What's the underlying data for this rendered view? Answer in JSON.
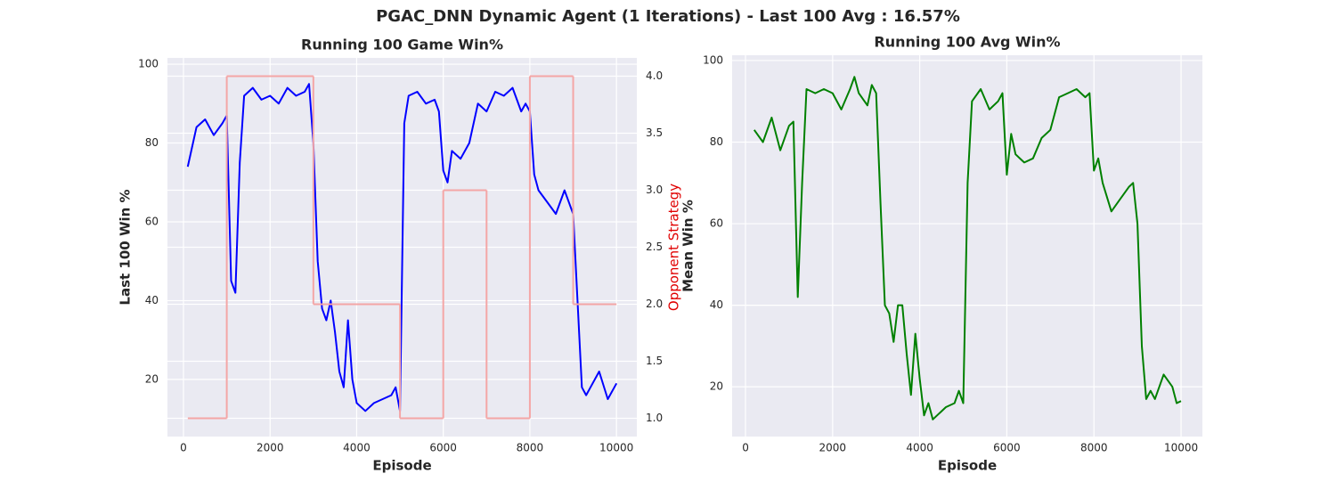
{
  "title": "PGAC_DNN Dynamic Agent (1 Iterations) -  Last 100 Avg : 16.57%",
  "chart_data": [
    {
      "type": "line",
      "title": "Running 100 Game Win%",
      "xlabel": "Episode",
      "ylabel": "Last 100 Win %",
      "y2label": "Opponent Strategy",
      "y2label_color": "#e00000",
      "grid": true,
      "xlim": [
        -370,
        10470
      ],
      "ylim": [
        5.5,
        101.6
      ],
      "y2lim": [
        0.84,
        4.16
      ],
      "xticks": [
        0,
        2000,
        4000,
        6000,
        8000,
        10000
      ],
      "yticks": [
        20,
        40,
        60,
        80,
        100
      ],
      "y2ticks": [
        {
          "value": 1,
          "label": "1.0"
        },
        1.5,
        {
          "value": 2,
          "label": "2.0"
        },
        2.5,
        {
          "value": 3,
          "label": "3.0"
        },
        3.5,
        {
          "value": 4,
          "label": "4.0"
        }
      ],
      "x": [
        100,
        300,
        500,
        700,
        900,
        1000,
        1100,
        1200,
        1300,
        1400,
        1600,
        1800,
        2000,
        2200,
        2400,
        2600,
        2800,
        2900,
        3000,
        3100,
        3200,
        3300,
        3400,
        3500,
        3600,
        3700,
        3800,
        3900,
        4000,
        4200,
        4400,
        4600,
        4800,
        4900,
        5000,
        5100,
        5200,
        5400,
        5600,
        5800,
        5900,
        6000,
        6100,
        6200,
        6400,
        6600,
        6800,
        7000,
        7200,
        7400,
        7600,
        7800,
        7900,
        8000,
        8100,
        8200,
        8400,
        8600,
        8800,
        9000,
        9100,
        9200,
        9300,
        9400,
        9600,
        9800,
        10000
      ],
      "series": [
        {
          "color": "#0000ff",
          "values": [
            74,
            84,
            86,
            82,
            85,
            87,
            45,
            42,
            75,
            92,
            94,
            91,
            92,
            90,
            94,
            92,
            93,
            95,
            80,
            50,
            38,
            35,
            40,
            32,
            22,
            18,
            35,
            20,
            14,
            12,
            14,
            15,
            16,
            18,
            12,
            85,
            92,
            93,
            90,
            91,
            88,
            73,
            70,
            78,
            76,
            80,
            90,
            88,
            93,
            92,
            94,
            88,
            90,
            88,
            72,
            68,
            65,
            62,
            68,
            62,
            40,
            18,
            16,
            18,
            22,
            15,
            19
          ]
        },
        {
          "type": "step",
          "axis": "y2",
          "color": "#f4a6a6",
          "x": [
            100,
            1000,
            3000,
            5000,
            6000,
            7000,
            8000,
            9000,
            10000
          ],
          "values": [
            1,
            4,
            2,
            1,
            3,
            1,
            4,
            2,
            2
          ]
        }
      ]
    },
    {
      "type": "line",
      "title": "Running 100 Avg Win%",
      "xlabel": "Episode",
      "ylabel": "Mean Win %",
      "grid": true,
      "xlim": [
        -307,
        10490
      ],
      "ylim": [
        7.8,
        101.3
      ],
      "xticks": [
        0,
        2000,
        4000,
        6000,
        8000,
        10000
      ],
      "yticks": [
        20,
        40,
        60,
        80,
        100
      ],
      "x": [
        200,
        400,
        600,
        800,
        1000,
        1100,
        1200,
        1300,
        1400,
        1600,
        1800,
        2000,
        2200,
        2400,
        2500,
        2600,
        2800,
        2900,
        3000,
        3100,
        3200,
        3300,
        3400,
        3500,
        3600,
        3700,
        3800,
        3900,
        4000,
        4100,
        4200,
        4300,
        4400,
        4500,
        4600,
        4800,
        4900,
        5000,
        5100,
        5200,
        5400,
        5600,
        5800,
        5900,
        6000,
        6100,
        6200,
        6400,
        6600,
        6800,
        7000,
        7200,
        7400,
        7600,
        7800,
        7900,
        8000,
        8100,
        8200,
        8400,
        8600,
        8800,
        8900,
        9000,
        9100,
        9200,
        9300,
        9400,
        9600,
        9800,
        9900,
        10000
      ],
      "series": [
        {
          "color": "#008000",
          "values": [
            83,
            80,
            86,
            78,
            84,
            85,
            42,
            70,
            93,
            92,
            93,
            92,
            88,
            93,
            96,
            92,
            89,
            94,
            92,
            65,
            40,
            38,
            31,
            40,
            40,
            28,
            18,
            33,
            22,
            13,
            16,
            12,
            13,
            14,
            15,
            16,
            19,
            16,
            70,
            90,
            93,
            88,
            90,
            92,
            72,
            82,
            77,
            75,
            76,
            81,
            83,
            91,
            92,
            93,
            91,
            92,
            73,
            76,
            70,
            63,
            66,
            69,
            70,
            60,
            30,
            17,
            19,
            17,
            23,
            20,
            16,
            16.5
          ]
        }
      ]
    }
  ]
}
